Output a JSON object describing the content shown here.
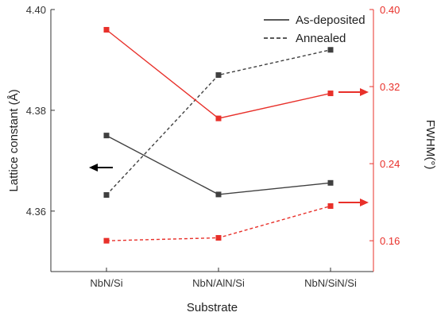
{
  "chart_data": {
    "type": "line",
    "xlabel": "Substrate",
    "ylabel_left": "Lattice constant (Å)",
    "ylabel_right": "FWHM(°)",
    "categories": [
      "NbN/Si",
      "NbN/AlN/Si",
      "NbN/SiN/Si"
    ],
    "ylim_left": [
      4.348,
      4.4
    ],
    "ylim_right": [
      0.128,
      0.4
    ],
    "yticks_left": [
      4.36,
      4.38,
      4.4
    ],
    "yticks_left_labels": [
      "4.36",
      "4.38",
      "4.40"
    ],
    "yticks_right": [
      0.16,
      0.24,
      0.32,
      0.4
    ],
    "yticks_right_labels": [
      "0.16",
      "0.24",
      "0.32",
      "0.40"
    ],
    "grid": false,
    "legend_position": "top-right",
    "legend": [
      {
        "label": "As-deposited",
        "style": "solid"
      },
      {
        "label": "Annealed",
        "style": "dashed"
      }
    ],
    "series": [
      {
        "axis": "left",
        "style": "solid",
        "color": "#404040",
        "values": [
          4.375,
          4.3633,
          4.3656
        ]
      },
      {
        "axis": "left",
        "style": "dashed",
        "color": "#404040",
        "values": [
          4.3632,
          4.387,
          4.392
        ]
      },
      {
        "axis": "right",
        "style": "solid",
        "color": "#e8302a",
        "values": [
          0.379,
          0.287,
          0.313
        ]
      },
      {
        "axis": "right",
        "style": "dashed",
        "color": "#e8302a",
        "values": [
          0.16,
          0.163,
          0.196
        ]
      }
    ],
    "colors": {
      "left_axis": "#333333",
      "right_axis": "#e8302a"
    }
  }
}
